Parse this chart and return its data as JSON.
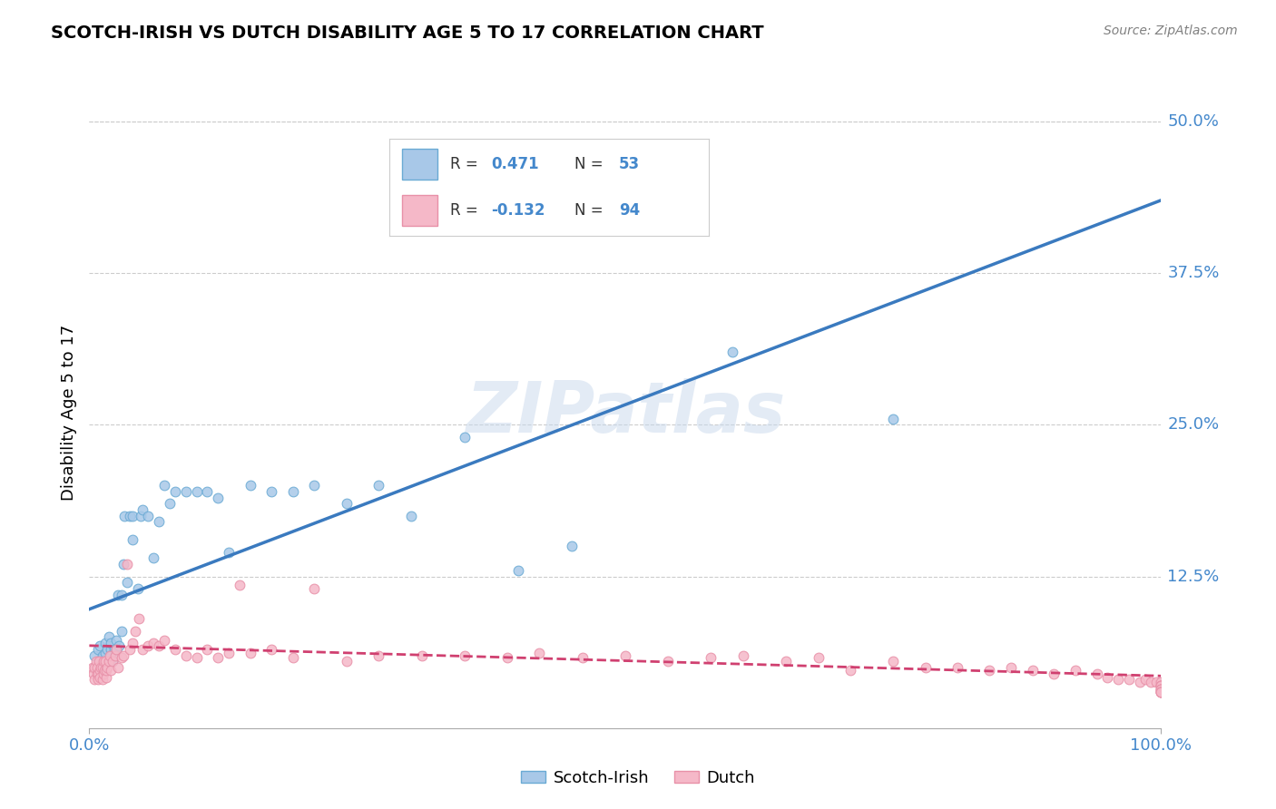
{
  "title": "SCOTCH-IRISH VS DUTCH DISABILITY AGE 5 TO 17 CORRELATION CHART",
  "source_text": "Source: ZipAtlas.com",
  "ylabel": "Disability Age 5 to 17",
  "xlim": [
    0,
    1.0
  ],
  "ylim": [
    0,
    0.52
  ],
  "y_tick_labels": [
    "12.5%",
    "25.0%",
    "37.5%",
    "50.0%"
  ],
  "y_tick_positions": [
    0.125,
    0.25,
    0.375,
    0.5
  ],
  "scotch_irish_R": 0.471,
  "scotch_irish_N": 53,
  "dutch_R": -0.132,
  "dutch_N": 94,
  "scotch_irish_color": "#a8c8e8",
  "scotch_irish_edge_color": "#6aaad4",
  "scotch_irish_line_color": "#3a7abf",
  "dutch_color": "#f5b8c8",
  "dutch_edge_color": "#e890a8",
  "dutch_line_color": "#d04070",
  "tick_label_color": "#4488cc",
  "scotch_irish_x": [
    0.005,
    0.008,
    0.01,
    0.01,
    0.012,
    0.013,
    0.015,
    0.015,
    0.017,
    0.018,
    0.02,
    0.02,
    0.02,
    0.022,
    0.023,
    0.025,
    0.025,
    0.027,
    0.028,
    0.03,
    0.03,
    0.032,
    0.033,
    0.035,
    0.038,
    0.04,
    0.04,
    0.045,
    0.048,
    0.05,
    0.055,
    0.06,
    0.065,
    0.07,
    0.075,
    0.08,
    0.09,
    0.1,
    0.11,
    0.12,
    0.13,
    0.15,
    0.17,
    0.19,
    0.21,
    0.24,
    0.27,
    0.3,
    0.35,
    0.4,
    0.45,
    0.6,
    0.75
  ],
  "scotch_irish_y": [
    0.06,
    0.065,
    0.055,
    0.068,
    0.06,
    0.055,
    0.062,
    0.07,
    0.065,
    0.075,
    0.065,
    0.07,
    0.06,
    0.055,
    0.065,
    0.065,
    0.072,
    0.11,
    0.068,
    0.11,
    0.08,
    0.135,
    0.175,
    0.12,
    0.175,
    0.175,
    0.155,
    0.115,
    0.175,
    0.18,
    0.175,
    0.14,
    0.17,
    0.2,
    0.185,
    0.195,
    0.195,
    0.195,
    0.195,
    0.19,
    0.145,
    0.2,
    0.195,
    0.195,
    0.2,
    0.185,
    0.2,
    0.175,
    0.24,
    0.13,
    0.15,
    0.31,
    0.255
  ],
  "dutch_x": [
    0.003,
    0.004,
    0.005,
    0.005,
    0.006,
    0.007,
    0.007,
    0.008,
    0.008,
    0.009,
    0.01,
    0.01,
    0.011,
    0.012,
    0.012,
    0.013,
    0.013,
    0.014,
    0.015,
    0.016,
    0.016,
    0.017,
    0.018,
    0.019,
    0.02,
    0.022,
    0.024,
    0.025,
    0.027,
    0.03,
    0.032,
    0.035,
    0.038,
    0.04,
    0.043,
    0.046,
    0.05,
    0.055,
    0.06,
    0.065,
    0.07,
    0.08,
    0.09,
    0.1,
    0.11,
    0.12,
    0.13,
    0.14,
    0.15,
    0.17,
    0.19,
    0.21,
    0.24,
    0.27,
    0.31,
    0.35,
    0.39,
    0.42,
    0.46,
    0.5,
    0.54,
    0.58,
    0.61,
    0.65,
    0.68,
    0.71,
    0.75,
    0.78,
    0.81,
    0.84,
    0.86,
    0.88,
    0.9,
    0.92,
    0.94,
    0.95,
    0.96,
    0.97,
    0.98,
    0.985,
    0.99,
    0.995,
    1.0,
    1.0,
    1.0,
    1.0,
    1.0,
    1.0,
    1.0,
    1.0,
    1.0,
    1.0,
    1.0,
    1.0
  ],
  "dutch_y": [
    0.05,
    0.045,
    0.05,
    0.04,
    0.055,
    0.045,
    0.05,
    0.045,
    0.04,
    0.055,
    0.048,
    0.042,
    0.05,
    0.05,
    0.04,
    0.055,
    0.045,
    0.048,
    0.055,
    0.042,
    0.048,
    0.05,
    0.055,
    0.06,
    0.048,
    0.055,
    0.06,
    0.065,
    0.05,
    0.058,
    0.06,
    0.135,
    0.065,
    0.07,
    0.08,
    0.09,
    0.065,
    0.068,
    0.07,
    0.068,
    0.072,
    0.065,
    0.06,
    0.058,
    0.065,
    0.058,
    0.062,
    0.118,
    0.062,
    0.065,
    0.058,
    0.115,
    0.055,
    0.06,
    0.06,
    0.06,
    0.058,
    0.062,
    0.058,
    0.06,
    0.055,
    0.058,
    0.06,
    0.055,
    0.058,
    0.048,
    0.055,
    0.05,
    0.05,
    0.048,
    0.05,
    0.048,
    0.045,
    0.048,
    0.045,
    0.042,
    0.04,
    0.04,
    0.038,
    0.04,
    0.038,
    0.038,
    0.035,
    0.038,
    0.035,
    0.035,
    0.035,
    0.032,
    0.032,
    0.03,
    0.032,
    0.03,
    0.03,
    0.03
  ],
  "watermark_text": "ZIPatlas",
  "background_color": "#ffffff",
  "grid_color": "#cccccc",
  "legend_labels": [
    "Scotch-Irish",
    "Dutch"
  ],
  "scotch_irish_line_x0": 0.0,
  "scotch_irish_line_x1": 1.0,
  "scotch_irish_line_y0": 0.098,
  "scotch_irish_line_y1": 0.435,
  "dutch_line_x0": 0.0,
  "dutch_line_x1": 1.0,
  "dutch_line_y0": 0.068,
  "dutch_line_y1": 0.043
}
